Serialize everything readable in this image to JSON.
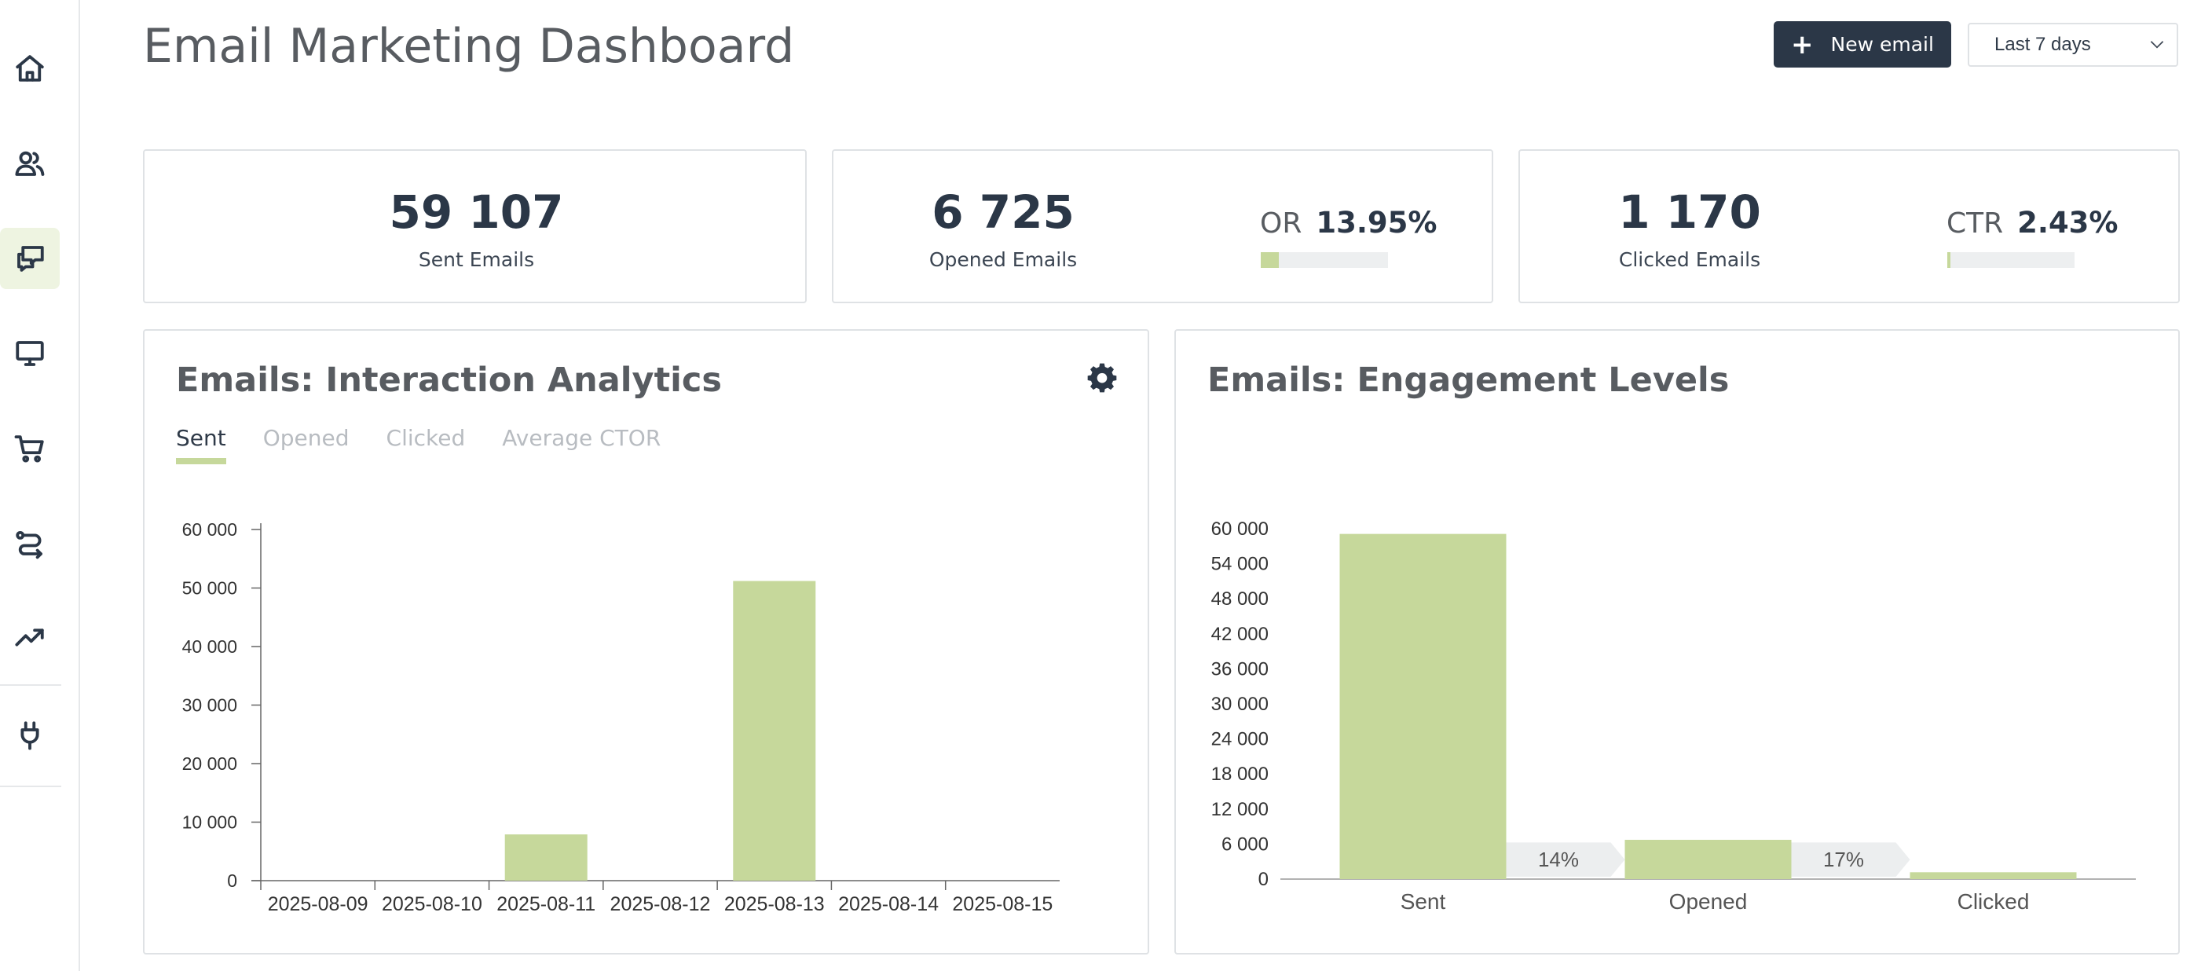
{
  "page": {
    "title": "Email Marketing Dashboard"
  },
  "header": {
    "new_button_label": "New email",
    "range_select_value": "Last 7 days"
  },
  "sidebar": {
    "items": [
      {
        "icon": "home-icon"
      },
      {
        "icon": "users-icon"
      },
      {
        "icon": "chat-icon",
        "active": true
      },
      {
        "icon": "monitor-icon"
      },
      {
        "icon": "cart-icon"
      },
      {
        "icon": "route-icon"
      },
      {
        "icon": "trend-icon"
      },
      {
        "icon": "plug-icon"
      }
    ]
  },
  "kpis": {
    "sent": {
      "value": "59 107",
      "label": "Sent Emails"
    },
    "opened": {
      "value": "6 725",
      "label": "Opened Emails",
      "ratio_name": "OR",
      "ratio_value": "13.95%",
      "ratio_fraction": 0.1395
    },
    "clicked": {
      "value": "1 170",
      "label": "Clicked Emails",
      "ratio_name": "CTR",
      "ratio_value": "2.43%",
      "ratio_fraction": 0.0243
    }
  },
  "interaction": {
    "title": "Emails: Interaction Analytics",
    "tabs": [
      "Sent",
      "Opened",
      "Clicked",
      "Average CTOR"
    ],
    "active_tab": "Sent"
  },
  "engagement": {
    "title": "Emails: Engagement Levels"
  },
  "colors": {
    "accent": "#c6d89b",
    "dark": "#2b3747",
    "funnel_arrow": "#eceeef"
  },
  "chart_data": [
    {
      "type": "bar",
      "title": "Emails: Interaction Analytics",
      "series_shown": "Sent",
      "categories": [
        "2025-08-09",
        "2025-08-10",
        "2025-08-11",
        "2025-08-12",
        "2025-08-13",
        "2025-08-14",
        "2025-08-15"
      ],
      "values": [
        0,
        0,
        7900,
        0,
        51200,
        0,
        0
      ],
      "ylim": [
        0,
        60000
      ],
      "yticks": [
        0,
        10000,
        20000,
        30000,
        40000,
        50000,
        60000
      ],
      "ytick_labels": [
        "0",
        "10 000",
        "20 000",
        "30 000",
        "40 000",
        "50 000",
        "60 000"
      ],
      "grid": false
    },
    {
      "type": "bar",
      "title": "Emails: Engagement Levels",
      "categories": [
        "Sent",
        "Opened",
        "Clicked"
      ],
      "values": [
        59107,
        6725,
        1170
      ],
      "ylim": [
        0,
        60000
      ],
      "yticks": [
        0,
        6000,
        12000,
        18000,
        24000,
        30000,
        36000,
        42000,
        48000,
        54000,
        60000
      ],
      "ytick_labels": [
        "0",
        "6 000",
        "12 000",
        "18 000",
        "24 000",
        "30 000",
        "36 000",
        "42 000",
        "48 000",
        "54 000",
        "60 000"
      ],
      "conversion_labels": [
        "14%",
        "17%"
      ],
      "grid": false
    }
  ]
}
